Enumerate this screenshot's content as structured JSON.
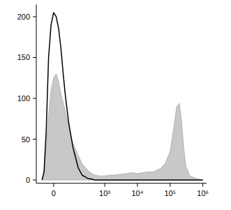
{
  "chart_data": {
    "type": "area",
    "x": [
      -50,
      -40,
      -30,
      -20,
      -10,
      0,
      10,
      20,
      30,
      40,
      50,
      70,
      100,
      150,
      200,
      300,
      400,
      500,
      700,
      1000,
      1500,
      2000,
      3000,
      5000,
      7000,
      10000,
      15000,
      20000,
      30000,
      50000,
      70000,
      100000,
      130000,
      160000,
      190000,
      220000,
      260000,
      300000,
      400000,
      600000,
      1000000
    ],
    "series": [
      {
        "type": "area",
        "color": "#c8c8c8",
        "values": [
          0,
          5,
          40,
          80,
          110,
          125,
          130,
          120,
          105,
          95,
          85,
          65,
          45,
          30,
          20,
          12,
          8,
          6,
          5,
          5,
          6,
          6,
          7,
          8,
          9,
          8,
          9,
          10,
          10,
          14,
          20,
          35,
          65,
          90,
          94,
          75,
          40,
          18,
          5,
          2,
          0
        ]
      },
      {
        "type": "line",
        "color": "#000000",
        "values": [
          0,
          10,
          60,
          150,
          190,
          205,
          200,
          185,
          160,
          130,
          105,
          70,
          40,
          15,
          6,
          2,
          1,
          0,
          0,
          0,
          0,
          0,
          0,
          0,
          0,
          0,
          0,
          0,
          0,
          0,
          0,
          0,
          0,
          0,
          0,
          0,
          0,
          0,
          0,
          0,
          0
        ]
      }
    ],
    "xlim": [
      -85,
      1300000
    ],
    "xticks": [
      0,
      {
        "value": 1000,
        "label": "10³"
      },
      {
        "value": 10000,
        "label": "10⁴"
      },
      {
        "value": 100000,
        "label": "10⁵"
      },
      {
        "value": 1000000,
        "label": "10⁶"
      }
    ],
    "ylim": [
      -4,
      215
    ],
    "yticks": [
      0,
      50,
      100,
      150,
      200
    ],
    "grid": false
  }
}
